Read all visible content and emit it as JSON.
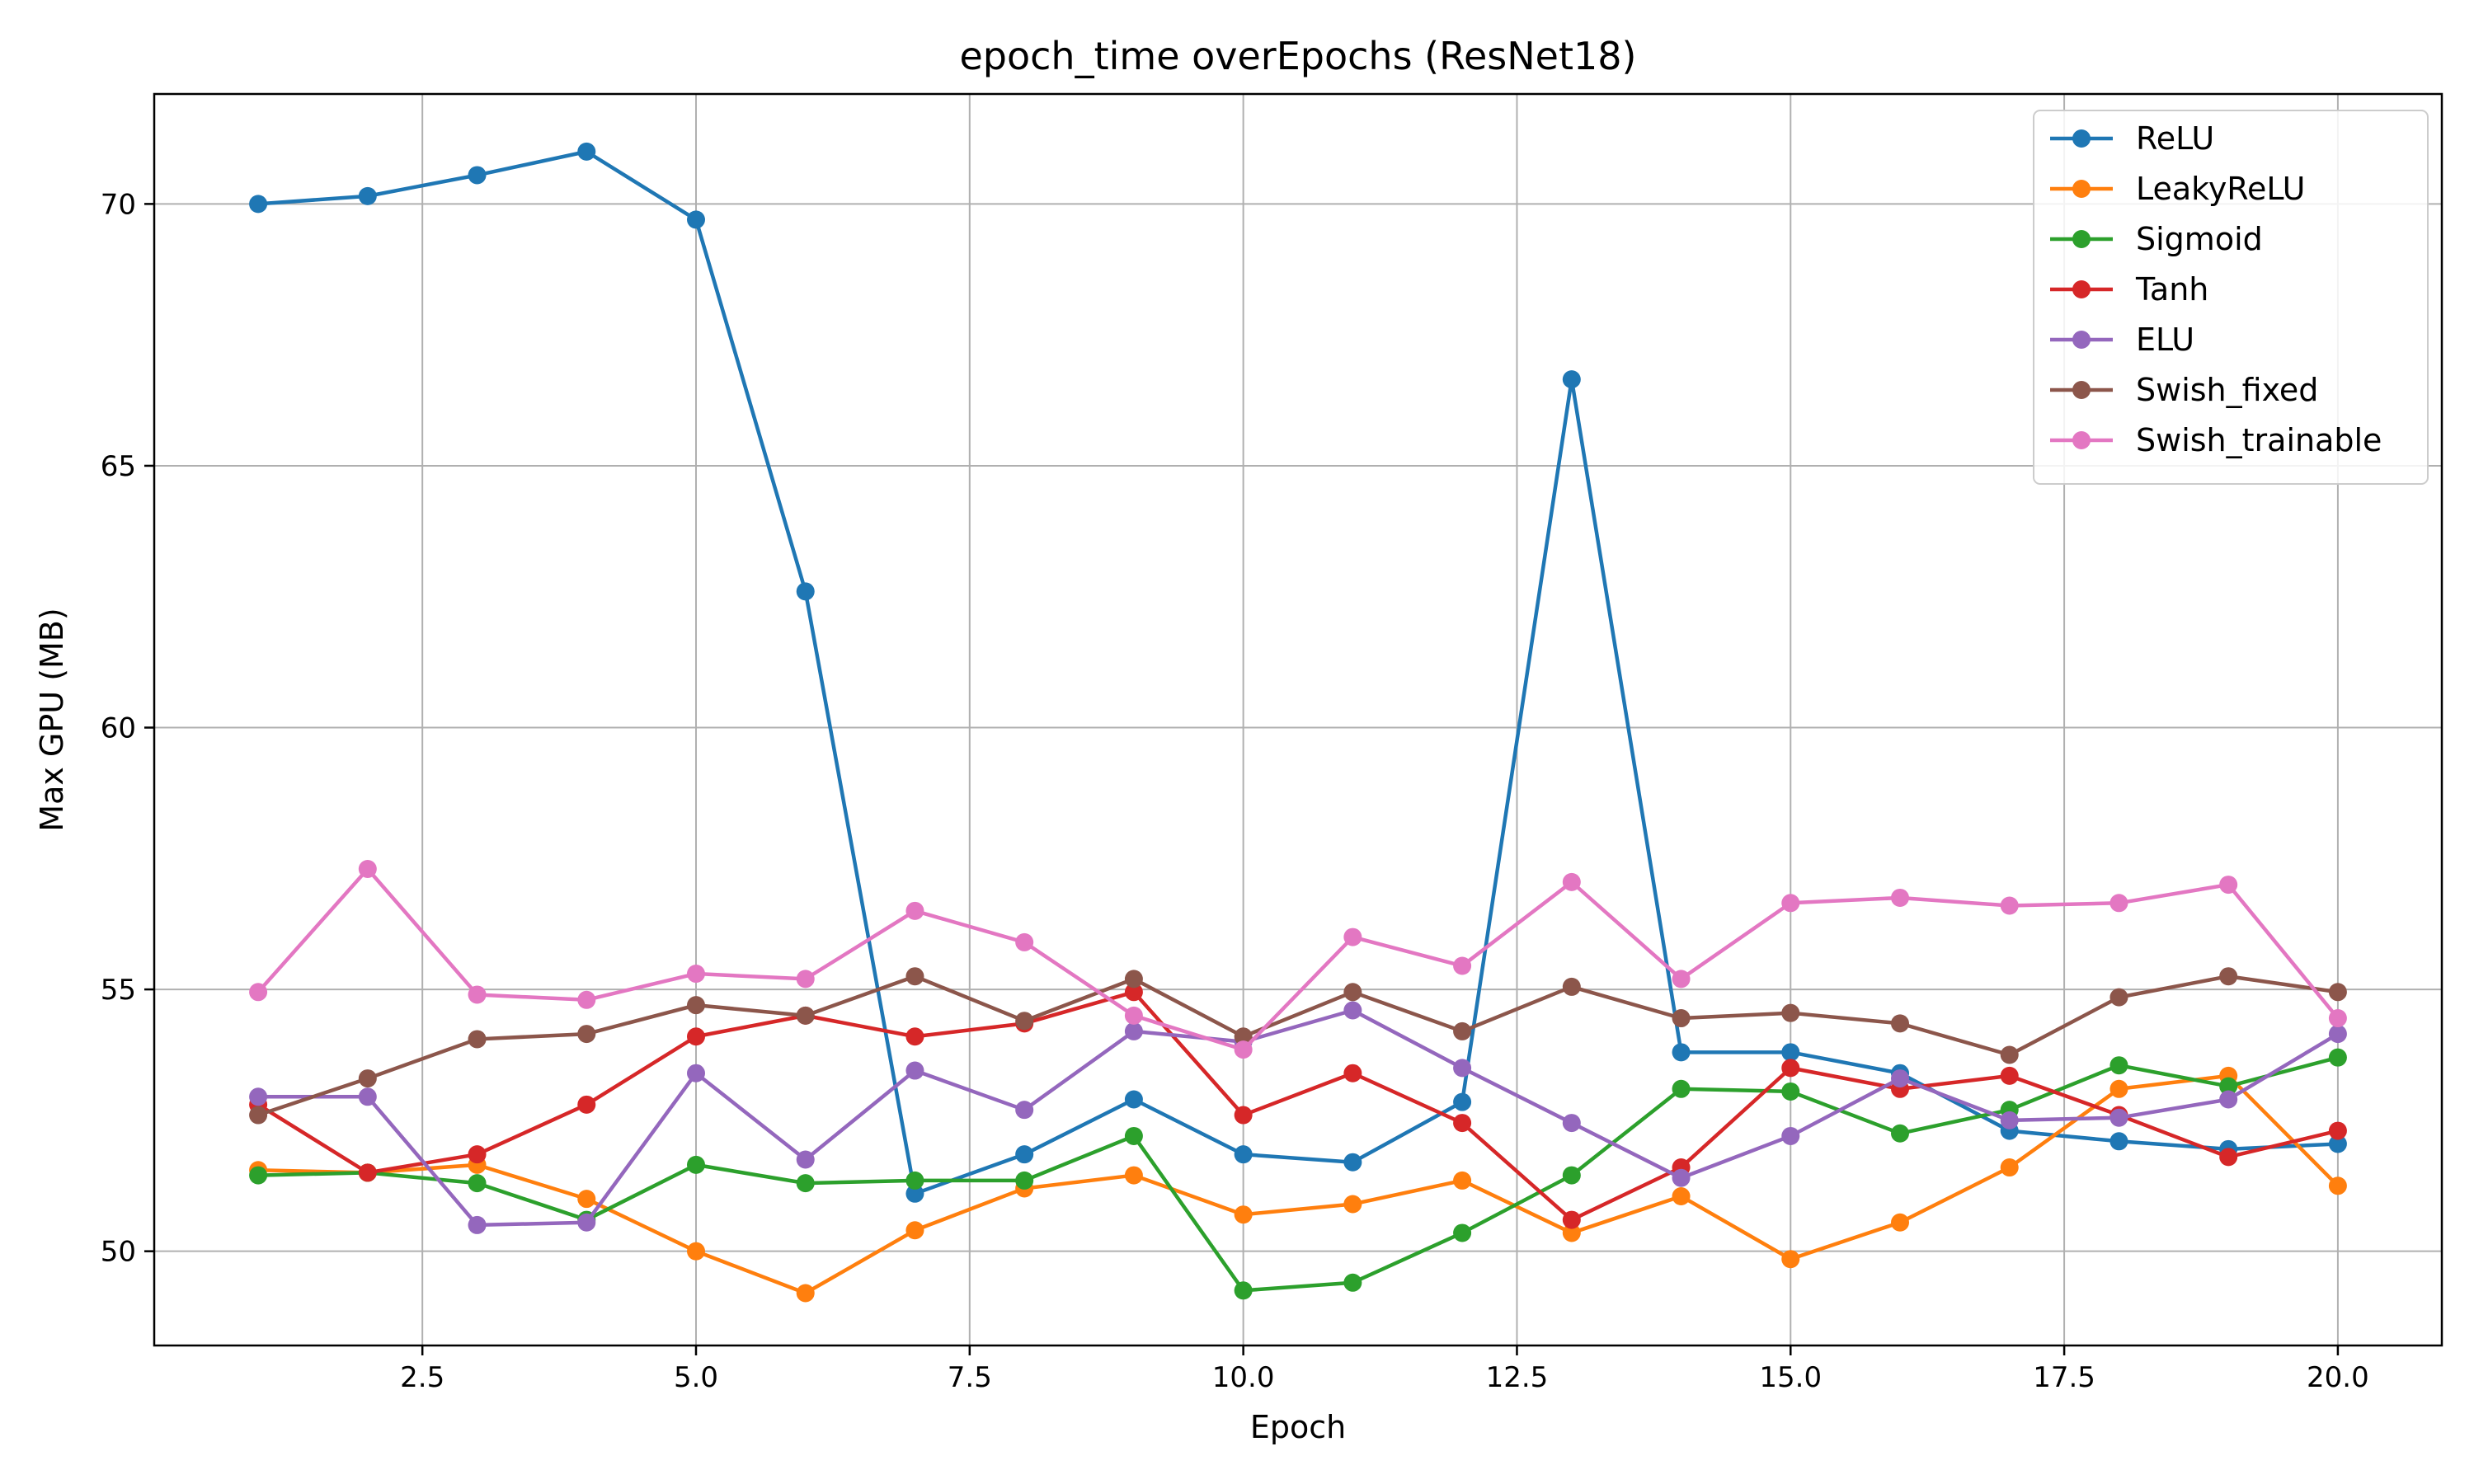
{
  "chart_data": {
    "type": "line",
    "title": "epoch_time overEpochs (ResNet18)",
    "xlabel": "Epoch",
    "ylabel": "Max GPU (MB)",
    "xlim": [
      0.05,
      20.95
    ],
    "ylim": [
      48.2,
      72.1
    ],
    "xticks": [
      2.5,
      5.0,
      7.5,
      10.0,
      12.5,
      15.0,
      17.5,
      20.0
    ],
    "xtick_labels": [
      "2.5",
      "5.0",
      "7.5",
      "10.0",
      "12.5",
      "15.0",
      "17.5",
      "20.0"
    ],
    "yticks": [
      50,
      55,
      60,
      65,
      70
    ],
    "ytick_labels": [
      "50",
      "55",
      "60",
      "65",
      "70"
    ],
    "grid": true,
    "legend_position": "top-right",
    "x": [
      1,
      2,
      3,
      4,
      5,
      6,
      7,
      8,
      9,
      10,
      11,
      12,
      13,
      14,
      15,
      16,
      17,
      18,
      19,
      20
    ],
    "series": [
      {
        "name": "ReLU",
        "color": "#1f77b4",
        "values": [
          70.0,
          70.15,
          70.55,
          71.0,
          69.7,
          62.6,
          51.1,
          51.85,
          52.9,
          51.85,
          51.7,
          52.85,
          66.65,
          53.8,
          53.8,
          53.4,
          52.3,
          52.1,
          51.95,
          52.05
        ]
      },
      {
        "name": "LeakyReLU",
        "color": "#ff7f0e",
        "values": [
          51.55,
          51.5,
          51.65,
          51.0,
          50.0,
          49.2,
          50.4,
          51.2,
          51.45,
          50.7,
          50.9,
          51.35,
          50.35,
          51.05,
          49.85,
          50.55,
          51.6,
          53.1,
          53.35,
          51.25
        ]
      },
      {
        "name": "Sigmoid",
        "color": "#2ca02c",
        "values": [
          51.45,
          51.5,
          51.3,
          50.6,
          51.65,
          51.3,
          51.35,
          51.35,
          52.2,
          49.25,
          49.4,
          50.35,
          51.45,
          53.1,
          53.05,
          52.25,
          52.7,
          53.55,
          53.15,
          53.7
        ]
      },
      {
        "name": "Tanh",
        "color": "#d62728",
        "values": [
          52.8,
          51.5,
          51.85,
          52.8,
          54.1,
          54.5,
          54.1,
          54.35,
          54.95,
          52.6,
          53.4,
          52.45,
          50.6,
          51.6,
          53.5,
          53.1,
          53.35,
          52.6,
          51.8,
          52.3
        ]
      },
      {
        "name": "ELU",
        "color": "#9467bd",
        "values": [
          52.95,
          52.95,
          50.5,
          50.55,
          53.4,
          51.75,
          53.45,
          52.7,
          54.2,
          54.0,
          54.6,
          53.5,
          52.45,
          51.4,
          52.2,
          53.3,
          52.5,
          52.55,
          52.9,
          54.15
        ]
      },
      {
        "name": "Swish_fixed",
        "color": "#8c564b",
        "values": [
          52.6,
          53.3,
          54.05,
          54.15,
          54.7,
          54.5,
          55.25,
          54.4,
          55.2,
          54.1,
          54.95,
          54.2,
          55.05,
          54.45,
          54.55,
          54.35,
          53.75,
          54.85,
          55.25,
          54.95
        ]
      },
      {
        "name": "Swish_trainable",
        "color": "#e377c2",
        "values": [
          54.95,
          57.3,
          54.9,
          54.8,
          55.3,
          55.2,
          56.5,
          55.9,
          54.5,
          53.85,
          56.0,
          55.45,
          57.05,
          55.2,
          56.65,
          56.75,
          56.6,
          56.65,
          57.0,
          54.45
        ]
      }
    ]
  }
}
